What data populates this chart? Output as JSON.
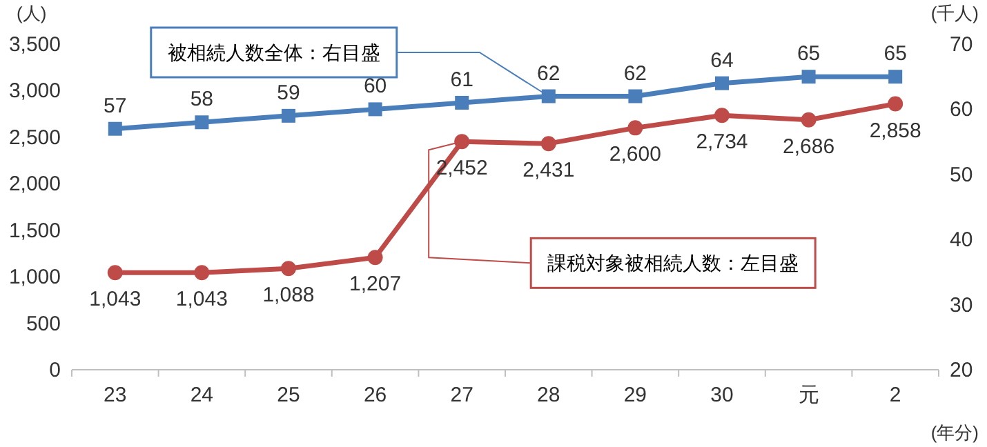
{
  "chart_data": {
    "type": "line",
    "categories": [
      "23",
      "24",
      "25",
      "26",
      "27",
      "28",
      "29",
      "30",
      "元",
      "2"
    ],
    "ylabel": "(人)",
    "y2label": "(千人)",
    "xlabel": "(年分)",
    "ylim": [
      0,
      3500
    ],
    "yticks": [
      0,
      {
        "value": 500,
        "label": "500"
      },
      {
        "value": 1000,
        "label": "1,000"
      },
      {
        "value": 1500,
        "label": "1,500"
      },
      {
        "value": 2000,
        "label": "2,000"
      },
      {
        "value": 2500,
        "label": "2,500"
      },
      {
        "value": 3000,
        "label": "3,000"
      },
      {
        "value": 3500,
        "label": "3,500"
      }
    ],
    "y2lim": [
      20,
      70
    ],
    "y2ticks": [
      20,
      30,
      40,
      50,
      60,
      70
    ],
    "grid": false,
    "line_style": "solid",
    "series": [
      {
        "color": "#4a7ebb",
        "axis": "y2",
        "marker": "square",
        "values": [
          57,
          58,
          59,
          60,
          61,
          62,
          62,
          64,
          65,
          65
        ],
        "value_labels": [
          "57",
          "58",
          "59",
          "60",
          "61",
          "62",
          "62",
          "64",
          "65",
          "65"
        ]
      },
      {
        "color": "#be4b48",
        "marker": "circle",
        "values": [
          1043,
          1043,
          1088,
          1207,
          2452,
          2431,
          2600,
          2734,
          2686,
          2858
        ],
        "value_labels": [
          "1,043",
          "1,043",
          "1,088",
          "1,207",
          "2,452",
          "2,431",
          "2,600",
          "2,734",
          "2,686",
          "2,858"
        ]
      }
    ],
    "annotations": [
      {
        "text": "被相続人数全体：右目盛",
        "x": "28",
        "y": 2940
      },
      {
        "text": "課税対象被相続人数：左目盛",
        "x": "27",
        "y": 2452
      }
    ]
  }
}
